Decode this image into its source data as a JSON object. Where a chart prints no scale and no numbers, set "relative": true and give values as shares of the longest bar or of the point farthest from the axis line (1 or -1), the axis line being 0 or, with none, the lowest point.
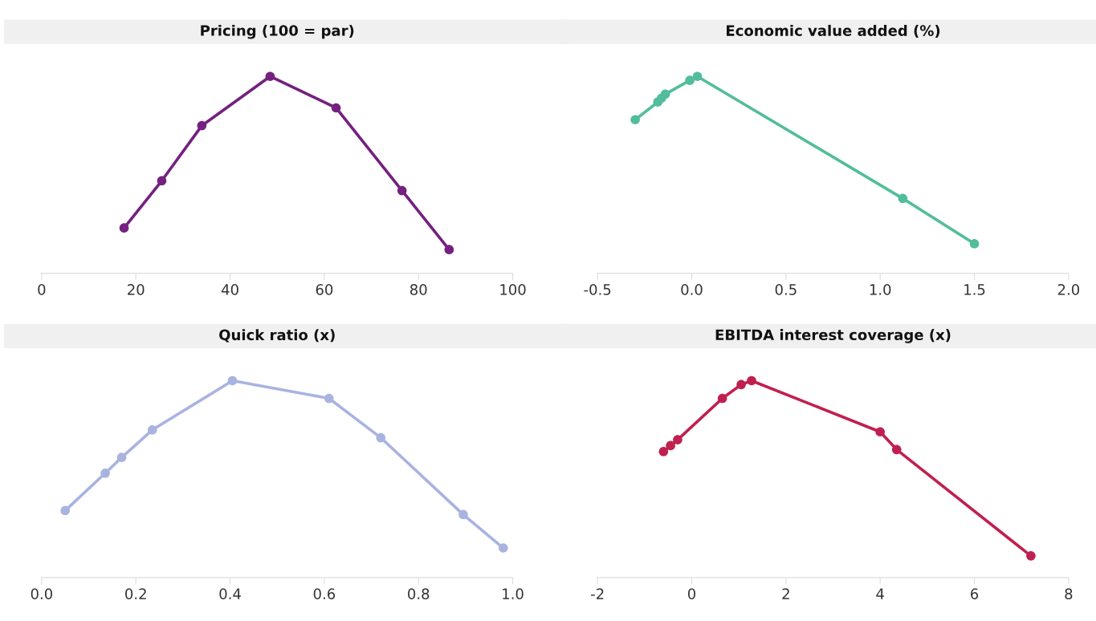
{
  "chart_data": [
    {
      "type": "line",
      "title": "Pricing (100 = par)",
      "relative": true,
      "marker": "circle",
      "line_style": "solid",
      "grid": false,
      "xlim": [
        0,
        100
      ],
      "xticks": [
        0,
        20,
        40,
        60,
        80,
        100
      ],
      "series": [
        {
          "color": "#74217f",
          "x": [
            17.5,
            25.5,
            34,
            48.5,
            62.5,
            76.5,
            86.5
          ],
          "values": [
            0.23,
            0.47,
            0.75,
            1,
            0.84,
            0.42,
            0.12
          ]
        }
      ]
    },
    {
      "type": "line",
      "title": "Economic value added (%)",
      "relative": true,
      "marker": "circle",
      "line_style": "solid",
      "grid": false,
      "xlim": [
        -0.5,
        2.0
      ],
      "xticks": [
        {
          "value": -0.5,
          "label": "-0.5"
        },
        {
          "value": 0,
          "label": "0.0"
        },
        0.5,
        {
          "value": 1,
          "label": "1.0"
        },
        1.5,
        {
          "value": 2,
          "label": "2.0"
        }
      ],
      "series": [
        {
          "color": "#52bd9c",
          "x": [
            -0.3,
            -0.18,
            -0.16,
            -0.14,
            -0.01,
            0.03,
            1.12,
            1.5
          ],
          "values": [
            0.78,
            0.87,
            0.89,
            0.91,
            0.98,
            1,
            0.38,
            0.15
          ]
        }
      ]
    },
    {
      "type": "line",
      "title": "Quick ratio (x)",
      "relative": true,
      "marker": "circle",
      "line_style": "solid",
      "grid": false,
      "xlim": [
        0.0,
        1.0
      ],
      "xticks": [
        {
          "value": 0,
          "label": "0.0"
        },
        0.2,
        0.4,
        0.6,
        0.8,
        {
          "value": 1,
          "label": "1.0"
        }
      ],
      "series": [
        {
          "color": "#a9b3e0",
          "x": [
            0.05,
            0.135,
            0.17,
            0.235,
            0.405,
            0.61,
            0.72,
            0.895,
            0.98
          ],
          "values": [
            0.34,
            0.53,
            0.61,
            0.75,
            1,
            0.91,
            0.71,
            0.32,
            0.15
          ]
        }
      ]
    },
    {
      "type": "line",
      "title": "EBITDA interest coverage (x)",
      "relative": true,
      "marker": "circle",
      "line_style": "solid",
      "grid": false,
      "xlim": [
        -2,
        8
      ],
      "xticks": [
        {
          "value": -2,
          "label": "-2"
        },
        0,
        2,
        4,
        6,
        8
      ],
      "series": [
        {
          "color": "#c0204f",
          "x": [
            -0.6,
            -0.45,
            -0.3,
            0.65,
            1.05,
            1.27,
            4.0,
            4.35,
            7.2
          ],
          "values": [
            0.64,
            0.67,
            0.7,
            0.91,
            0.98,
            1,
            0.74,
            0.65,
            0.11
          ]
        }
      ]
    }
  ]
}
